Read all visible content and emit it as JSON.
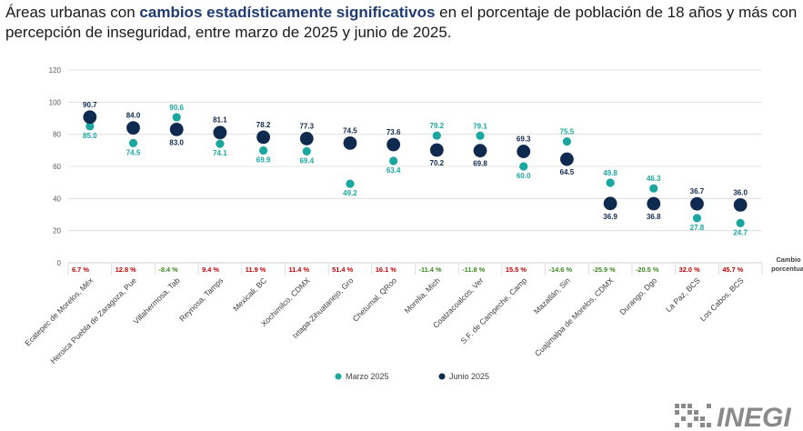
{
  "title": {
    "prefix": "Áreas urbanas con ",
    "highlight": "cambios estadísticamente significativos",
    "suffix": " en el porcentaje de población de 18 años y más con percepción de inseguridad, entre marzo de 2025 y junio de 2025."
  },
  "chart_data": {
    "type": "scatter",
    "categories": [
      "Ecatepec de Morelos, Méx",
      "Heroica Puebla de Zaragoza, Pue",
      "Villahermosa, Tab",
      "Reynosa, Tamps",
      "Mexicali, BC",
      "Xochimilco, CDMX",
      "Ixtapa-Zihuatanejo, Gro",
      "Chetumal, QRoo",
      "Morelia, Mich",
      "Coatzacoalcos, Ver",
      "S.F. de Campeche, Camp",
      "Mazatlán, Sin",
      "Cuajimalpa de Morelos, CDMX",
      "Durango, Dgo",
      "La Paz, BCS",
      "Los Cabos, BCS"
    ],
    "series": [
      {
        "name": "Marzo 2025",
        "color": "#1aa7a0",
        "values": [
          85.0,
          74.5,
          90.6,
          74.1,
          69.9,
          69.4,
          49.2,
          63.4,
          79.2,
          79.1,
          60.0,
          75.5,
          49.8,
          46.3,
          27.8,
          24.7
        ]
      },
      {
        "name": "Junio 2025",
        "color": "#0f2a4f",
        "values": [
          90.7,
          84.0,
          83.0,
          81.1,
          78.2,
          77.3,
          74.5,
          73.6,
          70.2,
          69.8,
          69.3,
          64.5,
          36.9,
          36.8,
          36.7,
          36.0
        ]
      }
    ],
    "labels": {
      "marzo": [
        "85.0",
        "74.5",
        "90.6",
        "74.1",
        "69.9",
        "69.4",
        "49.2",
        "63.4",
        "79.2",
        "79.1",
        "60.0",
        "75.5",
        "49.8",
        "46.3",
        "27.8",
        "24.7"
      ],
      "junio": [
        "90.7",
        "84.0",
        "83.0",
        "81.1",
        "78.2",
        "77.3",
        "74.5",
        "73.6",
        "70.2",
        "69.8",
        "69.3",
        "64.5",
        "36.9",
        "36.8",
        "36.7",
        "36.0"
      ]
    },
    "change_labels": [
      "6.7 %",
      "12.8 %",
      "-8.4 %",
      "9.4 %",
      "11.9 %",
      "11.4 %",
      "51.4 %",
      "16.1 %",
      "-11.4 %",
      "-11.8 %",
      "15.5 %",
      "-14.6 %",
      "-25.9 %",
      "-20.5 %",
      "32.0 %",
      "45.7 %"
    ],
    "change_values": [
      6.7,
      12.8,
      -8.4,
      9.4,
      11.9,
      11.4,
      51.4,
      16.1,
      -11.4,
      -11.8,
      15.5,
      -14.6,
      -25.9,
      -20.5,
      32.0,
      45.7
    ],
    "change_title": "Cambio porcentual",
    "yticks": [
      "0",
      "20",
      "40",
      "60",
      "80",
      "100",
      "120"
    ],
    "ylim": [
      0,
      120
    ],
    "grid": true,
    "legend_position": "bottom-center",
    "colors": {
      "positive": "#c00000",
      "negative": "#3a8a1f",
      "grid": "#dcdcdc"
    }
  },
  "logo": {
    "text": "INEGI"
  }
}
